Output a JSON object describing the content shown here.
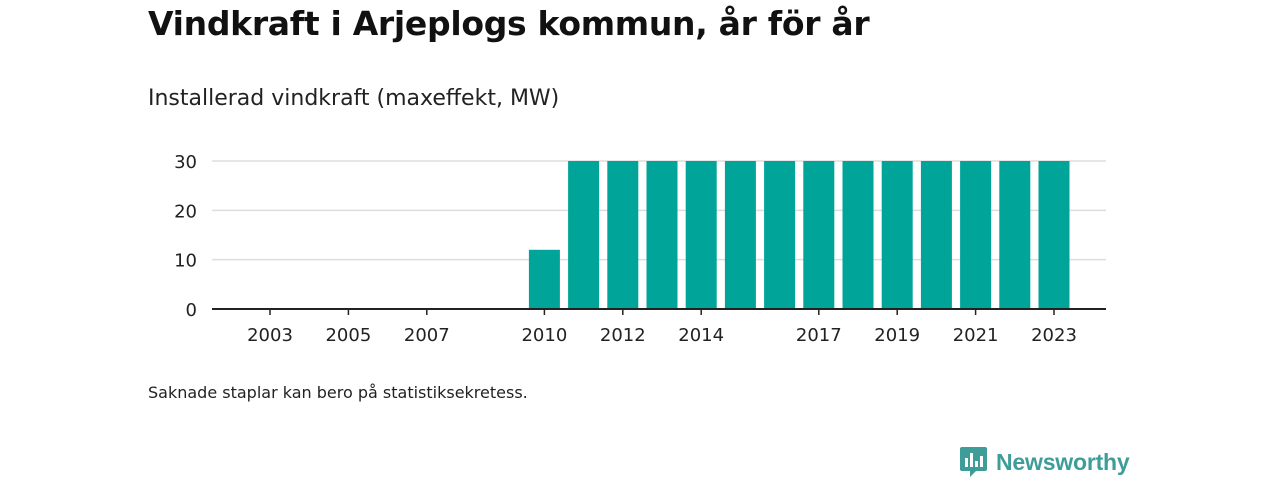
{
  "title": "Vindkraft i Arjeplogs kommun, år för år",
  "subtitle": "Installerad vindkraft (maxeffekt, MW)",
  "note": "Saknade staplar kan bero på statistiksekretess.",
  "brand": {
    "name": "Newsworthy",
    "icon": "newsworthy-logo-icon"
  },
  "colors": {
    "bar": "#00a499",
    "grid": "#dddddd",
    "axis": "#222222",
    "brand": "#3e9d98"
  },
  "chart_data": {
    "type": "bar",
    "x": [
      2003,
      2004,
      2005,
      2006,
      2007,
      2008,
      2009,
      2010,
      2011,
      2012,
      2013,
      2014,
      2015,
      2016,
      2017,
      2018,
      2019,
      2020,
      2021,
      2022,
      2023
    ],
    "values": [
      0,
      0,
      0,
      0,
      0,
      0,
      0,
      12,
      30,
      30,
      30,
      30,
      30,
      30,
      30,
      30,
      30,
      30,
      30,
      30,
      30
    ],
    "x_tick_labels": [
      "2003",
      "2005",
      "2007",
      "2010",
      "2012",
      "2014",
      "2017",
      "2019",
      "2021",
      "2023"
    ],
    "y_ticks": [
      0,
      10,
      20,
      30
    ],
    "ylim": [
      0,
      30
    ],
    "xlabel": "",
    "ylabel": "",
    "grid": true,
    "legend": "none"
  }
}
